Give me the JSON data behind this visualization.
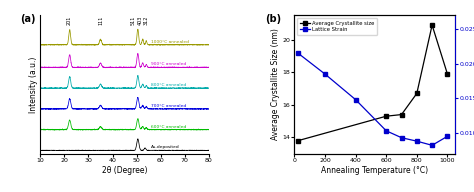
{
  "panel_a": {
    "xlabel": "2θ (Degree)",
    "ylabel": "Intensity (a.u.)",
    "xlim": [
      10,
      80
    ],
    "x_ticks": [
      10,
      20,
      30,
      40,
      50,
      60,
      70,
      80
    ],
    "labels": [
      "As-deposited",
      "600°C annealed",
      "700°C annealed",
      "800°C annealed",
      "900°C annealed",
      "1000°C annealed"
    ],
    "colors": [
      "black",
      "#00bb00",
      "#0000dd",
      "#00aaaa",
      "#cc00cc",
      "#999900"
    ],
    "offsets": [
      0.0,
      1.1,
      2.2,
      3.3,
      4.4,
      5.6
    ],
    "peak_labels": [
      "201",
      "111",
      "511",
      "403",
      "312"
    ],
    "peak_positions": [
      22.0,
      35.0,
      48.5,
      51.5,
      54.0
    ]
  },
  "panel_b": {
    "xlabel": "Annealing Temperature (°C)",
    "ylabel_left": "Average Crystallite Size (nm)",
    "ylabel_right": "Lattice Strain (%)",
    "xlim": [
      0,
      1050
    ],
    "ylim_left": [
      13.0,
      21.5
    ],
    "ylim_right": [
      0.007,
      0.027
    ],
    "x_ticks": [
      0,
      200,
      400,
      600,
      800,
      1000
    ],
    "yticks_left": [
      14,
      16,
      18,
      20
    ],
    "yticks_right": [
      0.01,
      0.015,
      0.02,
      0.025
    ],
    "cryst_x": [
      25,
      600,
      700,
      800,
      900,
      1000
    ],
    "cryst_y": [
      13.8,
      15.3,
      15.4,
      16.7,
      20.9,
      17.9
    ],
    "strain_x": [
      25,
      200,
      400,
      600,
      700,
      800,
      900,
      1000
    ],
    "strain_y": [
      0.0215,
      0.0185,
      0.0148,
      0.0103,
      0.0093,
      0.0088,
      0.0082,
      0.0095
    ],
    "cryst_color": "black",
    "strain_color": "#0000cc",
    "legend_labels": [
      "Average Crystallite size",
      "Lattice Strain"
    ]
  }
}
